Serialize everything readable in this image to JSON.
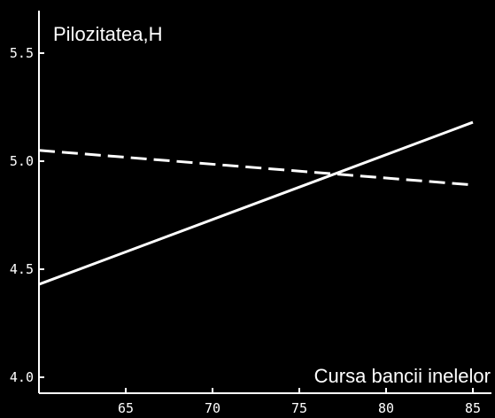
{
  "chart_data": {
    "type": "line",
    "title": "",
    "ylabel": "Pilozitatea,H",
    "xlabel": "Cursa bancii inelelor",
    "xlim": [
      60,
      86
    ],
    "ylim": [
      4.0,
      5.7
    ],
    "x_ticks": [
      65,
      70,
      75,
      80,
      85
    ],
    "y_ticks": [
      4.0,
      4.5,
      5.0,
      5.5
    ],
    "x_tick_labels": [
      "65",
      "70",
      "75",
      "80",
      "85"
    ],
    "y_tick_labels": [
      "4.0",
      "4.5",
      "5.0",
      "5.5"
    ],
    "grid": false,
    "legend": "none",
    "series": [
      {
        "style": "solid",
        "color": "#ffffff",
        "x": [
          60,
          85
        ],
        "y": [
          4.43,
          5.18
        ]
      },
      {
        "style": "dashed",
        "color": "#ffffff",
        "x": [
          60,
          85
        ],
        "y": [
          5.05,
          4.89
        ]
      }
    ]
  }
}
